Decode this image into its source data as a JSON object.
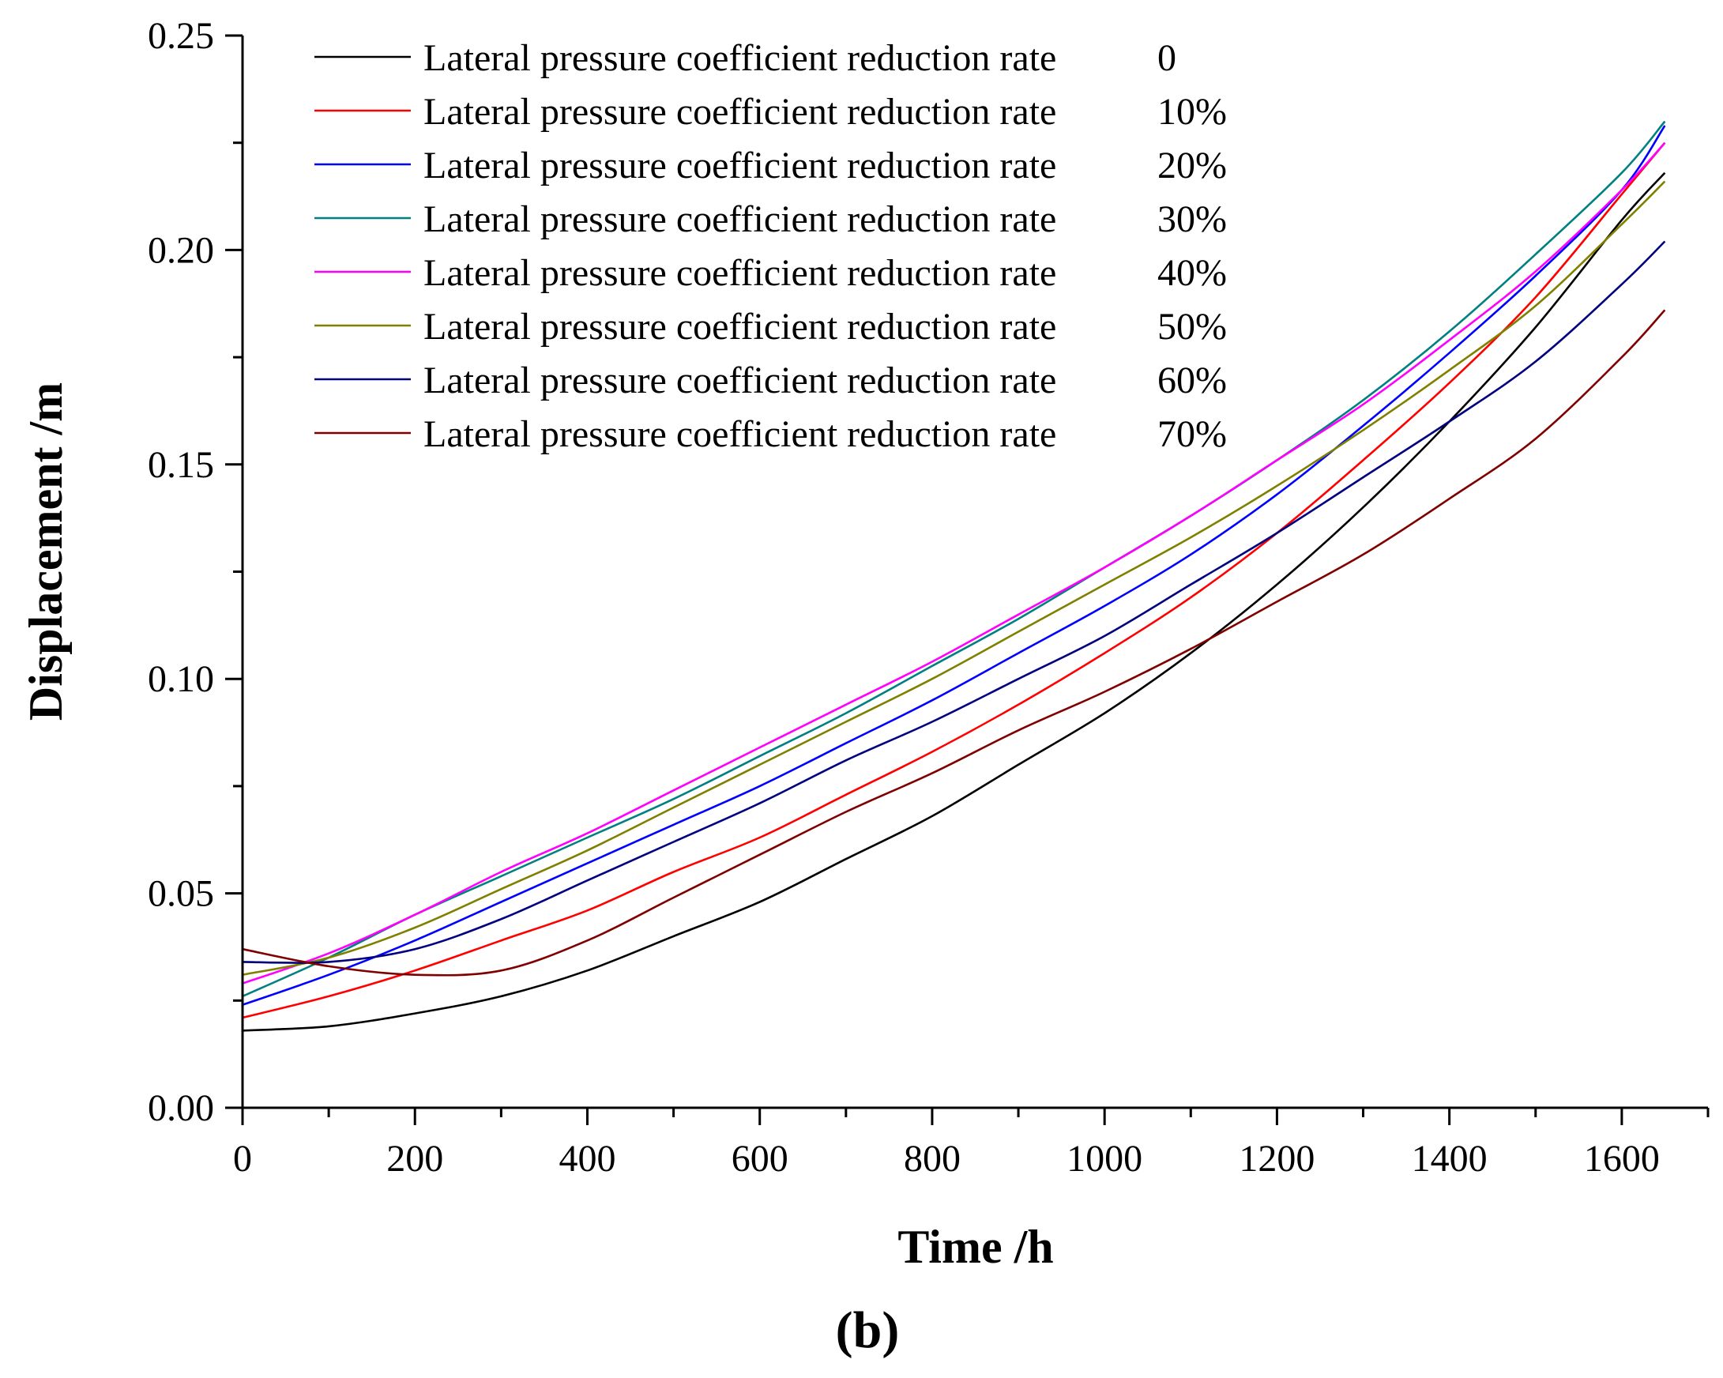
{
  "chart_data": {
    "type": "line",
    "title": "",
    "xlabel": "Time /h",
    "ylabel": "Displacement /m",
    "panel_label": "(b)",
    "xlim": [
      0,
      1700
    ],
    "ylim": [
      0,
      0.25
    ],
    "xticks": [
      0,
      200,
      400,
      600,
      800,
      1000,
      1200,
      1400,
      1600
    ],
    "yticks": [
      0,
      0.05,
      0.1,
      0.15,
      0.2,
      0.25
    ],
    "xtick_labels": [
      "0",
      "200",
      "400",
      "600",
      "800",
      "1000",
      "1200",
      "1400",
      "1600"
    ],
    "ytick_labels": [
      "0.00",
      "0.05",
      "0.10",
      "0.15",
      "0.20",
      "0.25"
    ],
    "x": [
      0,
      100,
      200,
      300,
      400,
      500,
      600,
      700,
      800,
      900,
      1000,
      1100,
      1200,
      1300,
      1400,
      1500,
      1600,
      1650
    ],
    "legend_position": "top-left",
    "series": [
      {
        "name": "Lateral pressure coefficient reduction rate",
        "rate": "0",
        "color": "#000000",
        "values": [
          0.018,
          0.019,
          0.022,
          0.026,
          0.032,
          0.04,
          0.048,
          0.058,
          0.068,
          0.08,
          0.092,
          0.106,
          0.122,
          0.14,
          0.16,
          0.182,
          0.207,
          0.218
        ]
      },
      {
        "name": "Lateral pressure coefficient reduction rate",
        "rate": "10%",
        "color": "#ff0000",
        "values": [
          0.021,
          0.026,
          0.032,
          0.039,
          0.046,
          0.055,
          0.063,
          0.073,
          0.083,
          0.094,
          0.106,
          0.119,
          0.134,
          0.151,
          0.169,
          0.189,
          0.213,
          0.225
        ]
      },
      {
        "name": "Lateral pressure coefficient reduction rate",
        "rate": "20%",
        "color": "#0000ff",
        "values": [
          0.024,
          0.031,
          0.039,
          0.048,
          0.057,
          0.066,
          0.075,
          0.085,
          0.095,
          0.106,
          0.117,
          0.129,
          0.143,
          0.159,
          0.176,
          0.194,
          0.214,
          0.229
        ]
      },
      {
        "name": "Lateral pressure coefficient reduction rate",
        "rate": "30%",
        "color": "#008080",
        "values": [
          0.026,
          0.035,
          0.045,
          0.054,
          0.063,
          0.072,
          0.082,
          0.092,
          0.103,
          0.114,
          0.126,
          0.138,
          0.151,
          0.165,
          0.181,
          0.199,
          0.218,
          0.23
        ]
      },
      {
        "name": "Lateral pressure coefficient reduction rate",
        "rate": "40%",
        "color": "#ff00ff",
        "values": [
          0.029,
          0.036,
          0.045,
          0.055,
          0.064,
          0.074,
          0.084,
          0.094,
          0.104,
          0.115,
          0.126,
          0.138,
          0.151,
          0.164,
          0.179,
          0.195,
          0.214,
          0.225
        ]
      },
      {
        "name": "Lateral pressure coefficient reduction rate",
        "rate": "50%",
        "color": "#808000",
        "values": [
          0.031,
          0.035,
          0.042,
          0.051,
          0.06,
          0.07,
          0.08,
          0.09,
          0.1,
          0.111,
          0.122,
          0.133,
          0.145,
          0.158,
          0.172,
          0.187,
          0.206,
          0.216
        ]
      },
      {
        "name": "Lateral pressure coefficient reduction rate",
        "rate": "60%",
        "color": "#000080",
        "values": [
          0.034,
          0.034,
          0.037,
          0.044,
          0.053,
          0.062,
          0.071,
          0.081,
          0.09,
          0.1,
          0.11,
          0.122,
          0.134,
          0.147,
          0.16,
          0.174,
          0.192,
          0.202
        ]
      },
      {
        "name": "Lateral pressure coefficient reduction rate",
        "rate": "70%",
        "color": "#800000",
        "values": [
          0.037,
          0.033,
          0.031,
          0.032,
          0.039,
          0.049,
          0.059,
          0.069,
          0.078,
          0.088,
          0.097,
          0.107,
          0.118,
          0.129,
          0.142,
          0.156,
          0.175,
          0.186
        ]
      }
    ]
  }
}
